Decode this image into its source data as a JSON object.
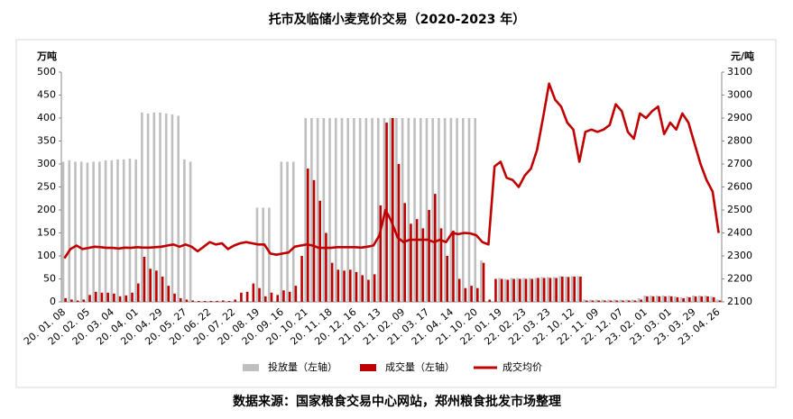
{
  "chart_data": {
    "type": "bar",
    "title": "托市及临储小麦竞价交易（2020-2023 年）",
    "y_label": "万吨",
    "y2_label": "元/吨",
    "source": "数据来源：国家粮食交易中心网站，郑州粮食批发市场整理",
    "categories": [
      "20. 01. 08",
      null,
      null,
      null,
      "20. 02. 05",
      null,
      null,
      null,
      "20. 03. 04",
      null,
      null,
      null,
      "20. 04. 01",
      null,
      null,
      null,
      "20. 04. 29",
      null,
      null,
      null,
      "20. 05. 27",
      null,
      null,
      null,
      "20. 06. 22",
      null,
      null,
      null,
      "20. 07. 22",
      null,
      null,
      null,
      "20. 08. 19",
      null,
      null,
      null,
      "20. 09. 16",
      null,
      null,
      null,
      "20. 10. 21",
      null,
      null,
      null,
      "20. 11. 18",
      null,
      null,
      null,
      "20. 12. 16",
      null,
      null,
      null,
      "21. 01. 13",
      null,
      null,
      null,
      "21. 02. 09",
      null,
      null,
      null,
      "21. 03. 17",
      null,
      null,
      null,
      "21. 04. 14",
      null,
      null,
      null,
      "21. 10. 20",
      null,
      null,
      null,
      "22. 01. 19",
      null,
      null,
      null,
      "22. 02. 23",
      null,
      null,
      null,
      "22. 03. 23",
      null,
      null,
      null,
      "22. 10. 12",
      null,
      null,
      null,
      "22. 11. 09",
      null,
      null,
      null,
      "22. 12. 07",
      null,
      null,
      null,
      "23. 02. 01",
      null,
      null,
      null,
      "23. 03. 01",
      null,
      null,
      null,
      "23. 03. 29",
      null,
      null,
      null,
      "23. 04. 26"
    ],
    "series": [
      {
        "name": "投放量（左轴）",
        "type": "bar",
        "color": "#bfbfbf",
        "values": [
          305,
          308,
          305,
          305,
          303,
          305,
          305,
          308,
          308,
          310,
          310,
          312,
          310,
          412,
          410,
          412,
          412,
          410,
          408,
          405,
          310,
          305,
          0,
          0,
          0,
          0,
          0,
          0,
          0,
          0,
          0,
          0,
          205,
          205,
          205,
          0,
          305,
          305,
          305,
          0,
          400,
          400,
          400,
          400,
          400,
          400,
          400,
          400,
          400,
          400,
          400,
          400,
          400,
          400,
          400,
          400,
          400,
          400,
          400,
          400,
          400,
          400,
          400,
          400,
          400,
          400,
          400,
          400,
          400,
          90,
          0,
          0,
          52,
          50,
          52,
          52,
          52,
          52,
          52,
          54,
          54,
          54,
          56,
          55,
          56,
          56,
          5,
          5,
          5,
          5,
          5,
          5,
          5,
          5,
          5,
          8,
          14,
          14,
          14,
          14,
          14,
          12,
          10,
          12,
          14,
          14,
          14,
          12,
          5
        ]
      },
      {
        "name": "成交量（左轴）",
        "type": "bar",
        "color": "#c00000",
        "values": [
          8,
          5,
          3,
          5,
          15,
          22,
          20,
          20,
          18,
          12,
          14,
          20,
          40,
          98,
          72,
          68,
          55,
          35,
          18,
          8,
          5,
          3,
          2,
          2,
          2,
          2,
          3,
          2,
          5,
          20,
          22,
          40,
          30,
          12,
          20,
          15,
          25,
          22,
          35,
          100,
          290,
          265,
          220,
          150,
          85,
          70,
          68,
          70,
          65,
          58,
          48,
          60,
          210,
          390,
          400,
          300,
          215,
          170,
          180,
          160,
          200,
          235,
          160,
          100,
          155,
          50,
          30,
          35,
          30,
          85,
          5,
          50,
          50,
          48,
          50,
          50,
          50,
          50,
          52,
          52,
          52,
          52,
          55,
          54,
          55,
          55,
          3,
          3,
          3,
          3,
          3,
          3,
          3,
          3,
          3,
          5,
          12,
          12,
          12,
          12,
          12,
          10,
          8,
          10,
          12,
          12,
          12,
          10,
          3
        ]
      },
      {
        "name": "成交均价",
        "type": "line",
        "axis": "y2",
        "color": "#c00000",
        "values": [
          2290,
          2330,
          2345,
          2330,
          2335,
          2340,
          2338,
          2335,
          2335,
          2332,
          2336,
          2335,
          2338,
          2336,
          2336,
          2338,
          2340,
          2345,
          2350,
          2340,
          2350,
          2340,
          2320,
          2340,
          2360,
          2350,
          2355,
          2330,
          2345,
          2355,
          2360,
          2355,
          2350,
          2350,
          2310,
          2305,
          2310,
          2315,
          2340,
          2345,
          2350,
          2345,
          2335,
          2335,
          2335,
          2338,
          2338,
          2338,
          2338,
          2336,
          2340,
          2345,
          2390,
          2500,
          2450,
          2380,
          2360,
          2370,
          2370,
          2370,
          2370,
          2360,
          2370,
          2360,
          2400,
          2395,
          2400,
          2398,
          2390,
          2360,
          2350,
          2690,
          2710,
          2640,
          2630,
          2600,
          2650,
          2680,
          2760,
          2900,
          3050,
          2980,
          2950,
          2880,
          2850,
          2710,
          2840,
          2850,
          2840,
          2850,
          2870,
          2960,
          2930,
          2840,
          2810,
          2920,
          2900,
          2930,
          2950,
          2830,
          2880,
          2850,
          2920,
          2880,
          2790,
          2700,
          2630,
          2580,
          2400
        ]
      }
    ],
    "ylim": [
      0,
      500
    ],
    "yticks": [
      0,
      50,
      100,
      150,
      200,
      250,
      300,
      350,
      400,
      450,
      500
    ],
    "y2lim": [
      2100,
      3100
    ],
    "y2ticks": [
      2100,
      2200,
      2300,
      2400,
      2500,
      2600,
      2700,
      2800,
      2900,
      3000,
      3100
    ],
    "grid": false
  }
}
